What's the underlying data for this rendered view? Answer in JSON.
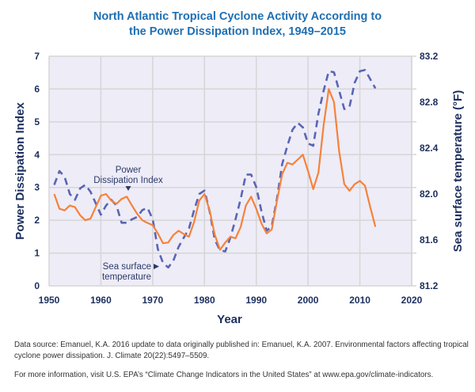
{
  "chart_data": {
    "type": "line",
    "title_lines": [
      "North Atlantic Tropical Cyclone Activity According to",
      "the Power Dissipation Index, 1949–2015"
    ],
    "xlabel": "Year",
    "ylabel": "Power Dissipation Index",
    "y2label": "Sea surface temperature (°F)",
    "xlim": [
      1950,
      2020
    ],
    "ylim": [
      0,
      7
    ],
    "y2lim": [
      81.2,
      83.2
    ],
    "x_ticks": [
      "1950",
      "1960",
      "1970",
      "1980",
      "1990",
      "2000",
      "2010",
      "2020"
    ],
    "y_ticks": [
      "0",
      "1",
      "2",
      "3",
      "4",
      "5",
      "6",
      "7"
    ],
    "y2_ticks": [
      "81.2",
      "81.6",
      "82.0",
      "82.4",
      "82.8",
      "83.2"
    ],
    "grid": true,
    "colors": {
      "pdi": "#f5823a",
      "sst": "#5866b4",
      "plot_bg": "#eeecf7",
      "grid": "#d6d6d6"
    },
    "series": [
      {
        "name": "Power Dissipation Index",
        "axis": "left",
        "style": "solid",
        "x": [
          1951,
          1952,
          1953,
          1954,
          1955,
          1956,
          1957,
          1958,
          1959,
          1960,
          1961,
          1962,
          1963,
          1964,
          1965,
          1966,
          1967,
          1968,
          1969,
          1970,
          1971,
          1972,
          1973,
          1974,
          1975,
          1976,
          1977,
          1978,
          1979,
          1980,
          1981,
          1982,
          1983,
          1984,
          1985,
          1986,
          1987,
          1988,
          1989,
          1990,
          1991,
          1992,
          1993,
          1994,
          1995,
          1996,
          1997,
          1998,
          1999,
          2000,
          2001,
          2002,
          2003,
          2004,
          2005,
          2006,
          2007,
          2008,
          2009,
          2010,
          2011,
          2012,
          2013
        ],
        "values": [
          2.8,
          2.35,
          2.3,
          2.45,
          2.4,
          2.15,
          2.0,
          2.05,
          2.4,
          2.75,
          2.8,
          2.6,
          2.5,
          2.65,
          2.72,
          2.45,
          2.2,
          2.0,
          1.92,
          1.85,
          1.6,
          1.3,
          1.32,
          1.55,
          1.68,
          1.58,
          1.5,
          1.95,
          2.6,
          2.8,
          2.3,
          1.55,
          1.1,
          1.32,
          1.5,
          1.45,
          1.8,
          2.45,
          2.72,
          2.35,
          1.9,
          1.6,
          1.72,
          2.6,
          3.4,
          3.75,
          3.7,
          3.85,
          4.0,
          3.5,
          2.95,
          3.45,
          4.9,
          6.0,
          5.6,
          4.1,
          3.1,
          2.9,
          3.1,
          3.2,
          3.05,
          2.4,
          1.8
        ]
      },
      {
        "name": "Sea surface temperature",
        "axis": "right",
        "style": "dashed",
        "x": [
          1951,
          1952,
          1953,
          1954,
          1955,
          1956,
          1957,
          1958,
          1959,
          1960,
          1961,
          1962,
          1963,
          1964,
          1965,
          1966,
          1967,
          1968,
          1969,
          1970,
          1971,
          1972,
          1973,
          1974,
          1975,
          1976,
          1977,
          1978,
          1979,
          1980,
          1981,
          1982,
          1983,
          1984,
          1985,
          1986,
          1987,
          1988,
          1989,
          1990,
          1991,
          1992,
          1993,
          1994,
          1995,
          1996,
          1997,
          1998,
          1999,
          2000,
          2001,
          2002,
          2003,
          2004,
          2005,
          2006,
          2007,
          2008,
          2009,
          2010,
          2011,
          2012,
          2013
        ],
        "values": [
          82.08,
          82.2,
          82.15,
          82.0,
          81.95,
          82.05,
          82.08,
          82.02,
          81.92,
          81.82,
          81.9,
          81.95,
          81.9,
          81.75,
          81.75,
          81.78,
          81.8,
          81.86,
          81.88,
          81.78,
          81.52,
          81.4,
          81.36,
          81.42,
          81.54,
          81.62,
          81.7,
          81.86,
          82.0,
          82.03,
          81.85,
          81.6,
          81.51,
          81.5,
          81.62,
          81.78,
          81.96,
          82.17,
          82.17,
          82.06,
          81.85,
          81.68,
          81.72,
          81.96,
          82.26,
          82.42,
          82.56,
          82.62,
          82.58,
          82.44,
          82.42,
          82.7,
          82.9,
          83.07,
          83.06,
          82.9,
          82.74,
          82.76,
          82.97,
          83.07,
          83.08,
          83.0,
          82.92
        ]
      }
    ],
    "annotations": [
      {
        "lines": [
          "Power",
          "Dissipation Index"
        ],
        "points_to": "Power Dissipation Index"
      },
      {
        "lines": [
          "Sea surface",
          "temperature"
        ],
        "points_to": "Sea surface temperature"
      }
    ]
  },
  "footer": {
    "source": "Data source: Emanuel, K.A. 2016 update to data originally published in: Emanuel, K.A. 2007. Environmental factors affecting tropical cyclone power dissipation. J. Climate 20(22):5497–5509.",
    "more_info": "For more information, visit U.S. EPA’s “Climate Change Indicators in the United States” at www.epa.gov/climate-indicators."
  }
}
